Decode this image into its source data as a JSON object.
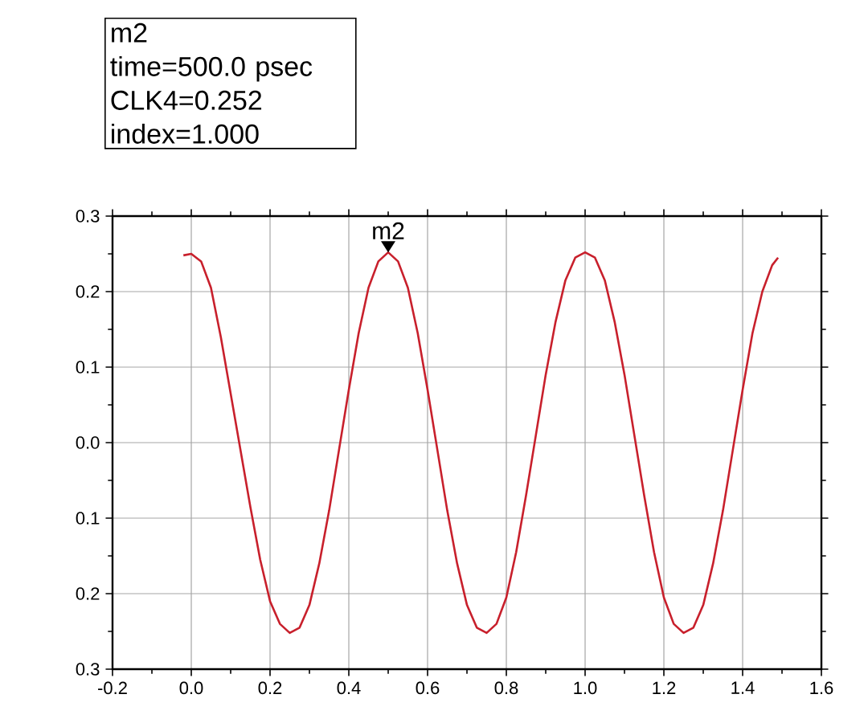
{
  "chart_data": {
    "type": "line",
    "x": [
      -0.02,
      0.0,
      0.025,
      0.05,
      0.075,
      0.1,
      0.125,
      0.15,
      0.175,
      0.2,
      0.225,
      0.25,
      0.275,
      0.3,
      0.325,
      0.35,
      0.375,
      0.4,
      0.425,
      0.45,
      0.475,
      0.5,
      0.525,
      0.55,
      0.575,
      0.6,
      0.625,
      0.65,
      0.675,
      0.7,
      0.725,
      0.75,
      0.775,
      0.8,
      0.825,
      0.85,
      0.875,
      0.9,
      0.925,
      0.95,
      0.975,
      1.0,
      1.025,
      1.05,
      1.075,
      1.1,
      1.125,
      1.15,
      1.175,
      1.2,
      1.225,
      1.25,
      1.275,
      1.3,
      1.325,
      1.35,
      1.375,
      1.4,
      1.425,
      1.45,
      1.475,
      1.49
    ],
    "series": [
      {
        "color": "#c8202c",
        "values": [
          0.248,
          0.25,
          0.24,
          0.205,
          0.14,
          0.065,
          -0.01,
          -0.085,
          -0.155,
          -0.21,
          -0.24,
          -0.252,
          -0.245,
          -0.215,
          -0.16,
          -0.09,
          -0.01,
          0.07,
          0.145,
          0.205,
          0.24,
          0.252,
          0.24,
          0.205,
          0.145,
          0.07,
          -0.01,
          -0.09,
          -0.16,
          -0.215,
          -0.245,
          -0.252,
          -0.24,
          -0.205,
          -0.145,
          -0.07,
          0.01,
          0.09,
          0.16,
          0.215,
          0.245,
          0.252,
          0.245,
          0.215,
          0.16,
          0.09,
          0.01,
          -0.07,
          -0.145,
          -0.205,
          -0.24,
          -0.252,
          -0.245,
          -0.215,
          -0.16,
          -0.09,
          -0.01,
          0.07,
          0.145,
          0.2,
          0.235,
          0.245
        ]
      }
    ],
    "xlim": [
      -0.2,
      1.6
    ],
    "xticks": [
      {
        "value": -0.2,
        "label": "-0.2"
      },
      {
        "value": 0.0,
        "label": "0.0"
      },
      {
        "value": 0.2,
        "label": "0.2"
      },
      {
        "value": 0.4,
        "label": "0.4"
      },
      {
        "value": 0.6,
        "label": "0.6"
      },
      {
        "value": 0.8,
        "label": "0.8"
      },
      {
        "value": 1.0,
        "label": "1.0"
      },
      {
        "value": 1.2,
        "label": "1.2"
      },
      {
        "value": 1.4,
        "label": "1.4"
      },
      {
        "value": 1.6,
        "label": "1.6"
      }
    ],
    "ylim": [
      -0.3,
      0.3
    ],
    "yticks": [
      {
        "value": -0.3,
        "label": "0.3"
      },
      {
        "value": -0.2,
        "label": "0.2"
      },
      {
        "value": -0.1,
        "label": "0.1"
      },
      {
        "value": 0.0,
        "label": "0.0"
      },
      {
        "value": 0.1,
        "label": "0.1"
      },
      {
        "value": 0.2,
        "label": "0.2"
      },
      {
        "value": 0.3,
        "label": "0.3"
      }
    ],
    "grid": true,
    "annotations": [
      {
        "text": "m2",
        "x": 0.5,
        "y": 0.252
      },
      "m2",
      "time=500.0 psec",
      "CLK4=0.252",
      "index=1.000"
    ]
  }
}
